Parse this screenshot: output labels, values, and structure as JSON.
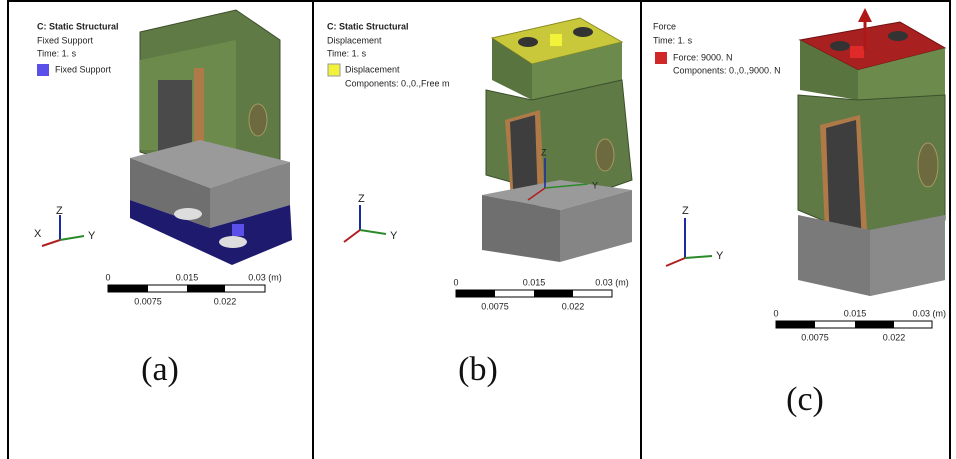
{
  "panels": [
    {
      "header": "C: Static Structural",
      "label": "Fixed Support",
      "time": "Time: 1. s",
      "legend": "Fixed Support",
      "axes": [
        "Z",
        "Y",
        "X"
      ],
      "scale": {
        "labels": [
          "0",
          "0.015",
          "0.03 (m)"
        ],
        "sublabels": [
          "0.0075",
          "0.022"
        ]
      },
      "caption": "(a)"
    },
    {
      "header": "C: Static Structural",
      "label": "Displacement",
      "time": "Time: 1. s",
      "legend": "Displacement",
      "components": "Components: 0.,0.,Free m",
      "axes": [
        "Z",
        "Y"
      ],
      "model_axes": [
        "Z",
        "Y"
      ],
      "scale": {
        "labels": [
          "0",
          "0.015",
          "0.03 (m)"
        ],
        "sublabels": [
          "0.0075",
          "0.022"
        ]
      },
      "caption": "(b)"
    },
    {
      "header": "Force",
      "time": "Time: 1. s",
      "legend": "Force: 9000. N",
      "components": "Components: 0.,0.,9000. N",
      "axes": [
        "Z",
        "Y"
      ],
      "scale": {
        "labels": [
          "0",
          "0.015",
          "0.03 (m)"
        ],
        "sublabels": [
          "0.0075",
          "0.022"
        ]
      },
      "caption": "(c)"
    }
  ]
}
